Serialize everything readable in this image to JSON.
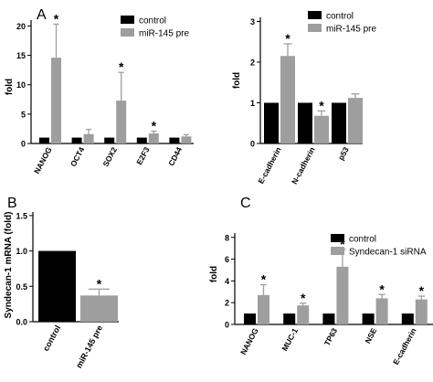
{
  "colors": {
    "control": "#000000",
    "treated": "#9e9e9e",
    "axis": "#000000"
  },
  "panels": [
    {
      "id": "A",
      "label": "A"
    },
    {
      "id": "B",
      "label": "B"
    },
    {
      "id": "C",
      "label": "C"
    }
  ],
  "chart_data": [
    {
      "panel": "A",
      "type": "bar",
      "ylabel": "fold",
      "ylim": [
        0,
        21
      ],
      "yticks": [
        0,
        5,
        10,
        15,
        20
      ],
      "categories": [
        "NANOG",
        "OCT4",
        "SOX2",
        "E2F3",
        "CD44"
      ],
      "legend": {
        "position": "top-right"
      },
      "series": [
        {
          "name": "control",
          "values": [
            1,
            1,
            1,
            1,
            1
          ],
          "errors": [
            0,
            0,
            0,
            0,
            0
          ]
        },
        {
          "name": "miR-145 pre",
          "values": [
            14.6,
            1.6,
            7.3,
            1.7,
            1.2
          ],
          "errors": [
            5.7,
            0.8,
            4.8,
            0.4,
            0.3
          ]
        }
      ],
      "significant": [
        [
          false,
          false,
          false,
          false,
          false
        ],
        [
          true,
          false,
          true,
          true,
          false
        ]
      ],
      "star": "*"
    },
    {
      "panel": "A2",
      "type": "bar",
      "ylabel": "fold",
      "ylim": [
        0,
        3.1
      ],
      "yticks": [
        0,
        1,
        2,
        3
      ],
      "categories": [
        "E-cadherin",
        "N-cadherin",
        "p53"
      ],
      "legend": {
        "position": "top"
      },
      "series": [
        {
          "name": "control",
          "values": [
            1,
            1,
            1
          ],
          "errors": [
            0,
            0,
            0
          ]
        },
        {
          "name": "miR-145 pre",
          "values": [
            2.15,
            0.68,
            1.12
          ],
          "errors": [
            0.3,
            0.12,
            0.1
          ]
        }
      ],
      "significant": [
        [
          false,
          false,
          false
        ],
        [
          true,
          true,
          false
        ]
      ],
      "star": "*"
    },
    {
      "panel": "B",
      "type": "bar",
      "ylabel": "Syndecan-1 mRNA (fold)",
      "ylim": [
        0,
        1.55
      ],
      "yticks": [
        0.0,
        0.5,
        1.0,
        1.5
      ],
      "ytick_labels": [
        "0.0",
        "0.5",
        "1.0",
        "1.5"
      ],
      "categories": [
        "control",
        "miR-145 pre"
      ],
      "values": [
        1.0,
        0.37
      ],
      "errors": [
        0,
        0.09
      ],
      "significant": [
        false,
        true
      ],
      "star": "*"
    },
    {
      "panel": "C",
      "type": "bar",
      "ylabel": "fold",
      "ylim": [
        0,
        8.4
      ],
      "yticks": [
        0,
        2,
        4,
        6,
        8
      ],
      "categories": [
        "NANOG",
        "MUC-1",
        "TP63",
        "NSE",
        "E-cadherin"
      ],
      "legend": {
        "position": "top-right"
      },
      "series": [
        {
          "name": "control",
          "values": [
            1,
            1,
            1,
            1,
            1
          ],
          "errors": [
            0,
            0,
            0,
            0,
            0
          ]
        },
        {
          "name": "Syndecan-1 siRNA",
          "values": [
            2.7,
            1.75,
            5.3,
            2.4,
            2.3
          ],
          "errors": [
            0.95,
            0.2,
            1.6,
            0.35,
            0.3
          ]
        }
      ],
      "significant": [
        [
          false,
          false,
          false,
          false,
          false
        ],
        [
          true,
          true,
          true,
          true,
          true
        ]
      ],
      "star": "*"
    }
  ]
}
